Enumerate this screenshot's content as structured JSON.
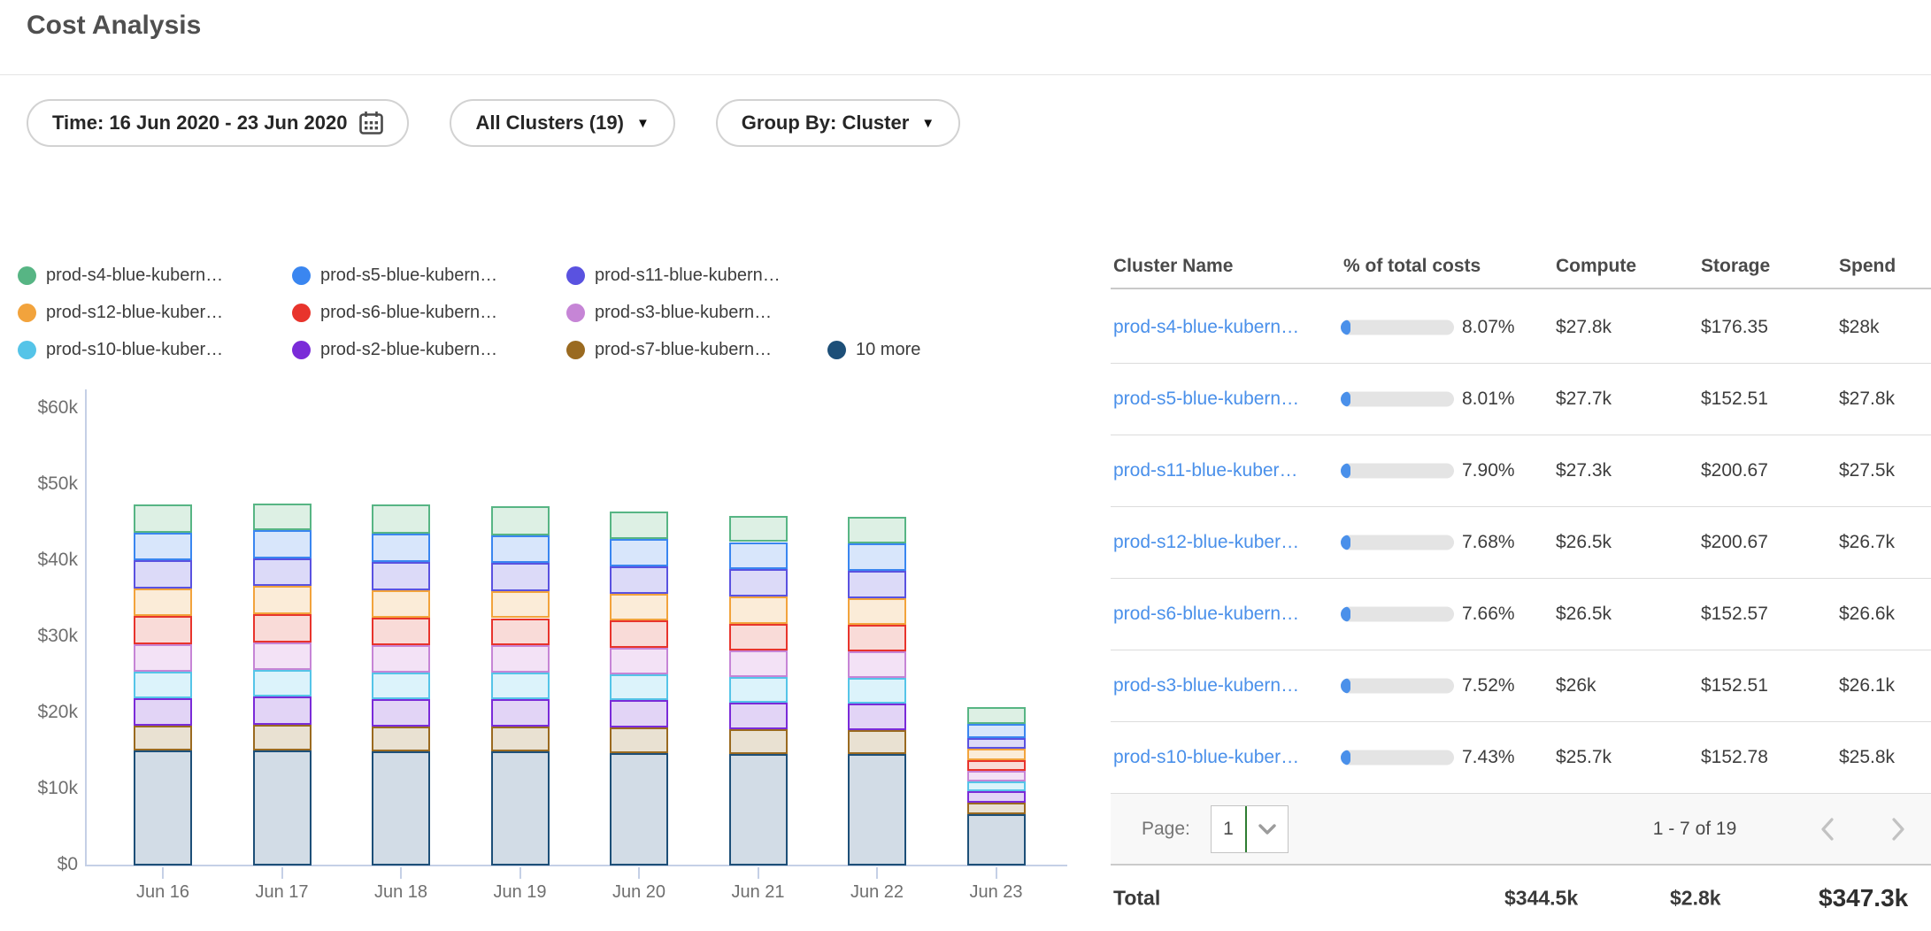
{
  "page_title": "Cost Analysis",
  "filters": {
    "time": {
      "label": "Time: 16 Jun 2020 - 23 Jun 2020"
    },
    "clusters": {
      "label": "All Clusters (19)"
    },
    "group_by": {
      "label": "Group By: Cluster"
    }
  },
  "legend": {
    "items": [
      {
        "label": "prod-s4-blue-kubern…",
        "color": "#57b584"
      },
      {
        "label": "prod-s5-blue-kubern…",
        "color": "#3a86f0"
      },
      {
        "label": "prod-s11-blue-kubern…",
        "color": "#5a52e0"
      },
      {
        "label": "prod-s12-blue-kuber…",
        "color": "#f2a33c"
      },
      {
        "label": "prod-s6-blue-kubern…",
        "color": "#e8342c"
      },
      {
        "label": "prod-s3-blue-kubern…",
        "color": "#c685d6"
      },
      {
        "label": "prod-s10-blue-kuber…",
        "color": "#55c4e8"
      },
      {
        "label": "prod-s2-blue-kubern…",
        "color": "#7a2bd8"
      },
      {
        "label": "prod-s7-blue-kubern…",
        "color": "#9a6a20"
      },
      {
        "label": "10 more",
        "color": "#1d4f78"
      }
    ]
  },
  "chart_data": {
    "type": "bar",
    "stacked": true,
    "title": "",
    "xlabel": "",
    "ylabel": "",
    "value_unit": "USD thousands",
    "ylim": [
      0,
      60
    ],
    "y_ticks": [
      "$60k",
      "$50k",
      "$40k",
      "$30k",
      "$20k",
      "$10k",
      "$0"
    ],
    "categories": [
      "Jun 16",
      "Jun 17",
      "Jun 18",
      "Jun 19",
      "Jun 20",
      "Jun 21",
      "Jun 22",
      "Jun 23"
    ],
    "series": [
      {
        "name": "prod-s4-blue-kubern…",
        "color": "#57b584",
        "fill": "#ddf0e4",
        "values": [
          3.7,
          3.5,
          3.8,
          3.8,
          3.6,
          3.4,
          3.5,
          2.2
        ]
      },
      {
        "name": "prod-s5-blue-kubern…",
        "color": "#3a86f0",
        "fill": "#d8e6fb",
        "values": [
          3.6,
          3.7,
          3.7,
          3.6,
          3.6,
          3.6,
          3.6,
          1.8
        ]
      },
      {
        "name": "prod-s11-blue-kubern…",
        "color": "#5a52e0",
        "fill": "#dcdaf8",
        "values": [
          3.7,
          3.7,
          3.7,
          3.7,
          3.6,
          3.6,
          3.6,
          1.5
        ]
      },
      {
        "name": "prod-s12-blue-kuber…",
        "color": "#f2a33c",
        "fill": "#fbecd8",
        "values": [
          3.6,
          3.7,
          3.6,
          3.6,
          3.5,
          3.5,
          3.5,
          1.5
        ]
      },
      {
        "name": "prod-s6-blue-kubern…",
        "color": "#e8342c",
        "fill": "#f9dbd8",
        "values": [
          3.7,
          3.7,
          3.6,
          3.6,
          3.6,
          3.5,
          3.5,
          1.4
        ]
      },
      {
        "name": "prod-s3-blue-kubern…",
        "color": "#c685d6",
        "fill": "#f3e2f6",
        "values": [
          3.6,
          3.6,
          3.6,
          3.5,
          3.5,
          3.5,
          3.4,
          1.4
        ]
      },
      {
        "name": "prod-s10-blue-kuber…",
        "color": "#55c4e8",
        "fill": "#dcf3fb",
        "values": [
          3.5,
          3.5,
          3.5,
          3.5,
          3.4,
          3.4,
          3.4,
          1.2
        ]
      },
      {
        "name": "prod-s2-blue-kubern…",
        "color": "#7a2bd8",
        "fill": "#e2d4f6",
        "values": [
          3.6,
          3.7,
          3.6,
          3.6,
          3.6,
          3.5,
          3.5,
          1.5
        ]
      },
      {
        "name": "prod-s7-blue-kubern…",
        "color": "#9a6a20",
        "fill": "#e9e1d2",
        "values": [
          3.3,
          3.4,
          3.3,
          3.3,
          3.3,
          3.3,
          3.2,
          1.5
        ]
      },
      {
        "name": "10 more",
        "color": "#1d4f78",
        "fill": "#d2dce6",
        "values": [
          15.1,
          15.1,
          15.0,
          15.0,
          14.8,
          14.6,
          14.6,
          6.8
        ]
      }
    ],
    "legend_position": "top-left",
    "grid": false
  },
  "table": {
    "columns": [
      "Cluster Name",
      "% of total costs",
      "Compute",
      "Storage",
      "Spend"
    ],
    "rows": [
      {
        "name": "prod-s4-blue-kubern…",
        "pct": "8.07%",
        "pct_value": 8.07,
        "compute": "$27.8k",
        "storage": "$176.35",
        "spend": "$28k"
      },
      {
        "name": "prod-s5-blue-kubern…",
        "pct": "8.01%",
        "pct_value": 8.01,
        "compute": "$27.7k",
        "storage": "$152.51",
        "spend": "$27.8k"
      },
      {
        "name": "prod-s11-blue-kuber…",
        "pct": "7.90%",
        "pct_value": 7.9,
        "compute": "$27.3k",
        "storage": "$200.67",
        "spend": "$27.5k"
      },
      {
        "name": "prod-s12-blue-kuber…",
        "pct": "7.68%",
        "pct_value": 7.68,
        "compute": "$26.5k",
        "storage": "$200.67",
        "spend": "$26.7k"
      },
      {
        "name": "prod-s6-blue-kubern…",
        "pct": "7.66%",
        "pct_value": 7.66,
        "compute": "$26.5k",
        "storage": "$152.57",
        "spend": "$26.6k"
      },
      {
        "name": "prod-s3-blue-kubern…",
        "pct": "7.52%",
        "pct_value": 7.52,
        "compute": "$26k",
        "storage": "$152.51",
        "spend": "$26.1k"
      },
      {
        "name": "prod-s10-blue-kuber…",
        "pct": "7.43%",
        "pct_value": 7.43,
        "compute": "$25.7k",
        "storage": "$152.78",
        "spend": "$25.8k"
      }
    ],
    "pagination": {
      "page_label": "Page:",
      "page_value": "1",
      "range": "1 - 7 of 19"
    },
    "total": {
      "label": "Total",
      "compute": "$344.5k",
      "storage": "$2.8k",
      "spend": "$347.3k"
    }
  },
  "colors": {
    "link": "#4a90ea",
    "progress_fill": "#4a90ea",
    "progress_track": "#e4e4e4",
    "axis": "#c5d0e6",
    "select_accent_green": "#2e7d32"
  }
}
